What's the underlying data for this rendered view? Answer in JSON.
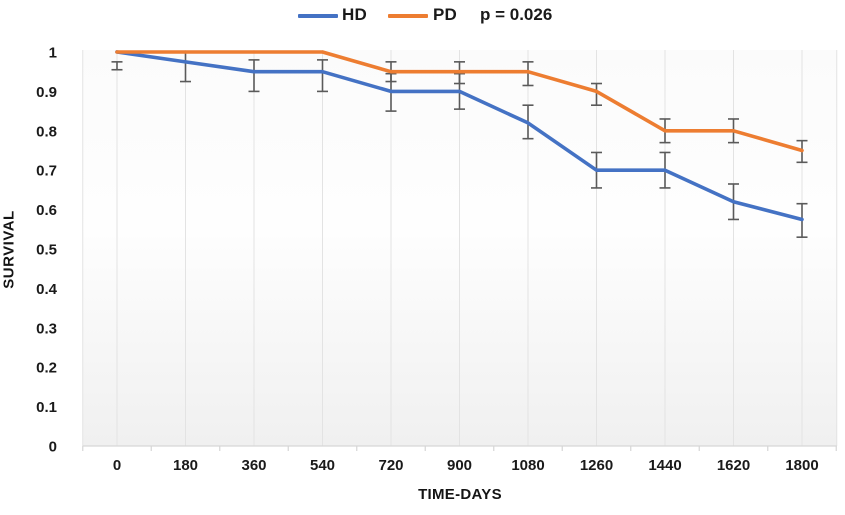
{
  "legend": {
    "hd_label": "HD",
    "pd_label": "PD",
    "p_value": "p = 0.026"
  },
  "colors": {
    "hd_line": "#4472C4",
    "pd_line": "#ED7D31",
    "error_bar": "#5a5a5a",
    "gridline": "#e3e3e3",
    "axis_line": "#d6d6d6",
    "text": "#1a1a1a"
  },
  "chart_data": {
    "type": "line",
    "title": "",
    "xlabel": "TIME-DAYS",
    "ylabel": "SURVIVAL",
    "x": [
      0,
      180,
      360,
      540,
      720,
      900,
      1080,
      1260,
      1440,
      1620,
      1800
    ],
    "x_tick_labels": [
      "0",
      "180",
      "360",
      "540",
      "720",
      "900",
      "1080",
      "1260",
      "1440",
      "1620",
      "1800"
    ],
    "y_tick_labels": [
      "1",
      "0.9",
      "0.8",
      "0.7",
      "0.6",
      "0.5",
      "0.4",
      "0.3",
      "0.2",
      "0.1",
      "0"
    ],
    "ylim": [
      0,
      1
    ],
    "y_tick_step": 0.1,
    "grid": "vertical-only",
    "legend_position": "top-center",
    "annotation": "p = 0.026",
    "error_bars_shown": true,
    "series": [
      {
        "name": "HD",
        "color": "#4472C4",
        "values": [
          1.0,
          0.975,
          0.95,
          0.95,
          0.9,
          0.9,
          0.82,
          0.7,
          0.7,
          0.62,
          0.575
        ],
        "error_bars": [
          {
            "top": 0.975,
            "bottom": 0.955
          },
          {
            "top": 1.0,
            "bottom": 0.925
          },
          {
            "top": 0.98,
            "bottom": 0.9
          },
          {
            "top": 0.98,
            "bottom": 0.9
          },
          {
            "top": 0.945,
            "bottom": 0.85
          },
          {
            "top": 0.945,
            "bottom": 0.855
          },
          {
            "top": 0.865,
            "bottom": 0.78
          },
          {
            "top": 0.745,
            "bottom": 0.655
          },
          {
            "top": 0.745,
            "bottom": 0.655
          },
          {
            "top": 0.665,
            "bottom": 0.575
          },
          {
            "top": 0.615,
            "bottom": 0.53
          }
        ]
      },
      {
        "name": "PD",
        "color": "#ED7D31",
        "values": [
          1.0,
          1.0,
          1.0,
          1.0,
          0.95,
          0.95,
          0.95,
          0.9,
          0.8,
          0.8,
          0.75
        ],
        "error_bars": [
          null,
          null,
          null,
          null,
          {
            "top": 0.975,
            "bottom": 0.925
          },
          {
            "top": 0.975,
            "bottom": 0.92
          },
          {
            "top": 0.975,
            "bottom": 0.915
          },
          {
            "top": 0.92,
            "bottom": 0.865
          },
          {
            "top": 0.83,
            "bottom": 0.77
          },
          {
            "top": 0.83,
            "bottom": 0.77
          },
          {
            "top": 0.775,
            "bottom": 0.72
          }
        ]
      }
    ]
  }
}
